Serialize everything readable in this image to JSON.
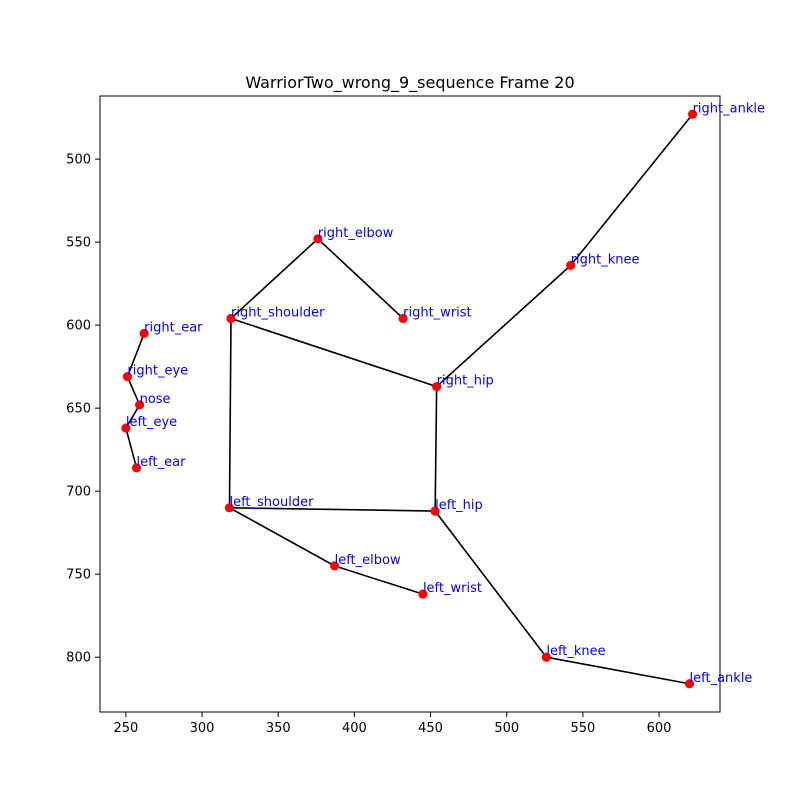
{
  "chart_data": {
    "type": "scatter",
    "title": "WarriorTwo_wrong_9_sequence Frame 20",
    "xlabel": "",
    "ylabel": "",
    "xlim": [
      233,
      640
    ],
    "ylim": [
      833,
      462
    ],
    "y_inverted": true,
    "grid": false,
    "x_ticks": [
      250,
      300,
      350,
      400,
      450,
      500,
      550,
      600
    ],
    "y_ticks": [
      500,
      550,
      600,
      650,
      700,
      750,
      800
    ],
    "colors": {
      "point": "#ff0000",
      "line": "#000000",
      "label": "#0000ff"
    },
    "points": [
      {
        "name": "nose",
        "x": 259,
        "y": 648
      },
      {
        "name": "right_eye",
        "x": 251,
        "y": 631
      },
      {
        "name": "left_eye",
        "x": 250,
        "y": 662
      },
      {
        "name": "right_ear",
        "x": 262,
        "y": 605
      },
      {
        "name": "left_ear",
        "x": 257,
        "y": 686
      },
      {
        "name": "right_shoulder",
        "x": 319,
        "y": 596
      },
      {
        "name": "left_shoulder",
        "x": 318,
        "y": 710
      },
      {
        "name": "right_elbow",
        "x": 376,
        "y": 548
      },
      {
        "name": "left_elbow",
        "x": 387,
        "y": 745
      },
      {
        "name": "right_wrist",
        "x": 432,
        "y": 596
      },
      {
        "name": "left_wrist",
        "x": 445,
        "y": 762
      },
      {
        "name": "right_hip",
        "x": 454,
        "y": 637
      },
      {
        "name": "left_hip",
        "x": 453,
        "y": 712
      },
      {
        "name": "right_knee",
        "x": 542,
        "y": 564
      },
      {
        "name": "left_knee",
        "x": 526,
        "y": 800
      },
      {
        "name": "right_ankle",
        "x": 622,
        "y": 473
      },
      {
        "name": "left_ankle",
        "x": 620,
        "y": 816
      }
    ],
    "connections": [
      [
        "right_ear",
        "right_eye"
      ],
      [
        "right_eye",
        "nose"
      ],
      [
        "nose",
        "left_eye"
      ],
      [
        "left_eye",
        "left_ear"
      ],
      [
        "right_shoulder",
        "right_elbow"
      ],
      [
        "right_elbow",
        "right_wrist"
      ],
      [
        "right_shoulder",
        "left_shoulder"
      ],
      [
        "right_shoulder",
        "right_hip"
      ],
      [
        "left_shoulder",
        "left_hip"
      ],
      [
        "left_shoulder",
        "left_elbow"
      ],
      [
        "left_elbow",
        "left_wrist"
      ],
      [
        "right_hip",
        "left_hip"
      ],
      [
        "right_hip",
        "right_knee"
      ],
      [
        "right_knee",
        "right_ankle"
      ],
      [
        "left_hip",
        "left_knee"
      ],
      [
        "left_knee",
        "left_ankle"
      ]
    ]
  }
}
